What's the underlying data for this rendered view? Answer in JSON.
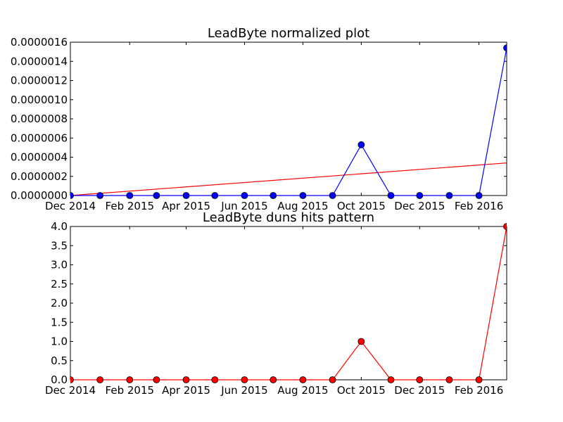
{
  "chart_data": [
    {
      "type": "line",
      "title": "LeadByte normalized plot",
      "xlabel": "",
      "ylabel": "",
      "x_dates": [
        "2014-12-01",
        "2015-01-01",
        "2015-02-01",
        "2015-03-01",
        "2015-04-01",
        "2015-05-01",
        "2015-06-01",
        "2015-07-01",
        "2015-08-01",
        "2015-09-01",
        "2015-10-01",
        "2015-11-01",
        "2015-12-01",
        "2016-01-01",
        "2016-02-01",
        "2016-03-01"
      ],
      "xlim": [
        "2014-12-01",
        "2016-03-01"
      ],
      "ylim": [
        0,
        1.6e-06
      ],
      "x_tick_labels": [
        "Dec 2014",
        "Feb 2015",
        "Apr 2015",
        "Jun 2015",
        "Aug 2015",
        "Oct 2015",
        "Dec 2015",
        "Feb 2016"
      ],
      "x_tick_dates": [
        "2014-12-01",
        "2015-02-01",
        "2015-04-01",
        "2015-06-01",
        "2015-08-01",
        "2015-10-01",
        "2015-12-01",
        "2016-02-01"
      ],
      "y_tick_labels": [
        "0.0000000",
        "0.0000002",
        "0.0000004",
        "0.0000006",
        "0.0000008",
        "0.0000010",
        "0.0000012",
        "0.0000014",
        "0.0000016"
      ],
      "y_ticks": [
        0,
        2e-07,
        4e-07,
        6e-07,
        8e-07,
        1e-06,
        1.2e-06,
        1.4e-06,
        1.6e-06
      ],
      "series": [
        {
          "color": "#0000ff",
          "marker": "circle",
          "values": [
            0,
            0,
            0,
            0,
            0,
            0,
            0,
            0,
            0,
            0,
            5.3e-07,
            0,
            0,
            0,
            0,
            1.54e-06
          ]
        }
      ],
      "trend_line": {
        "color": "#ff0000",
        "from": [
          "2014-12-01",
          0
        ],
        "to": [
          "2016-03-01",
          3.4e-07
        ]
      },
      "grid": false
    },
    {
      "type": "line",
      "title": "LeadByte duns hits pattern",
      "xlabel": "",
      "ylabel": "",
      "x_dates": [
        "2014-12-01",
        "2015-01-01",
        "2015-02-01",
        "2015-03-01",
        "2015-04-01",
        "2015-05-01",
        "2015-06-01",
        "2015-07-01",
        "2015-08-01",
        "2015-09-01",
        "2015-10-01",
        "2015-11-01",
        "2015-12-01",
        "2016-01-01",
        "2016-02-01",
        "2016-03-01"
      ],
      "xlim": [
        "2014-12-01",
        "2016-03-01"
      ],
      "ylim": [
        0,
        4.0
      ],
      "x_tick_labels": [
        "Dec 2014",
        "Feb 2015",
        "Apr 2015",
        "Jun 2015",
        "Aug 2015",
        "Oct 2015",
        "Dec 2015",
        "Feb 2016"
      ],
      "x_tick_dates": [
        "2014-12-01",
        "2015-02-01",
        "2015-04-01",
        "2015-06-01",
        "2015-08-01",
        "2015-10-01",
        "2015-12-01",
        "2016-02-01"
      ],
      "y_tick_labels": [
        "0.0",
        "0.5",
        "1.0",
        "1.5",
        "2.0",
        "2.5",
        "3.0",
        "3.5",
        "4.0"
      ],
      "y_ticks": [
        0,
        0.5,
        1.0,
        1.5,
        2.0,
        2.5,
        3.0,
        3.5,
        4.0
      ],
      "series": [
        {
          "color": "#ff0000",
          "marker": "circle",
          "values": [
            0,
            0,
            0,
            0,
            0,
            0,
            0,
            0,
            0,
            0,
            1,
            0,
            0,
            0,
            0,
            4
          ]
        }
      ],
      "grid": false
    }
  ]
}
